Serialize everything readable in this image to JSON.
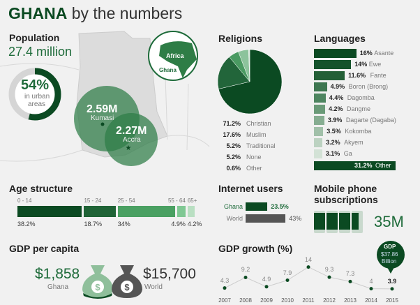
{
  "title": {
    "bold": "GHANA",
    "rest": "by the numbers"
  },
  "colors": {
    "dark_green": "#0b4a22",
    "accent_green": "#2e7d46",
    "gray": "#555555"
  },
  "population": {
    "label": "Population",
    "value": "27.4 million",
    "urban_pct": 54,
    "urban_value": "54%",
    "urban_label1": "in urban",
    "urban_label2": "areas",
    "cities": [
      {
        "value": "2.59M",
        "name": "Kumasi"
      },
      {
        "value": "2.27M",
        "name": "Accra"
      }
    ],
    "inset": {
      "continent": "Africa",
      "country": "Ghana"
    }
  },
  "chart_data": [
    {
      "type": "pie",
      "title": "Religions",
      "categories": [
        "Christian",
        "Muslim",
        "Traditional",
        "None",
        "Other"
      ],
      "values": [
        71.2,
        17.6,
        5.2,
        5.2,
        0.6
      ],
      "labels": [
        "71.2%",
        "17.6%",
        "5.2%",
        "5.2%",
        "0.6%"
      ],
      "colors": [
        "#0b4a22",
        "#22653a",
        "#4a9a62",
        "#8cc39c",
        "#d3e6d8"
      ]
    },
    {
      "type": "bar",
      "title": "Languages",
      "categories": [
        "Asante",
        "Ewe",
        "Fante",
        "Boron (Brong)",
        "Dagomba",
        "Dangme",
        "Dagarte (Dagaba)",
        "Kokomba",
        "Akyem",
        "Ga"
      ],
      "values": [
        16,
        14,
        11.6,
        4.9,
        4.4,
        4.2,
        3.9,
        3.5,
        3.2,
        3.1
      ],
      "labels": [
        "16%",
        "14%",
        "11.6%",
        "4.9%",
        "4.4%",
        "4.2%",
        "3.9%",
        "3.5%",
        "3.2%",
        "3.1%"
      ],
      "other": {
        "label": "Other",
        "value": 31.2,
        "text": "31.2%"
      },
      "colors": [
        "#0b4a22",
        "#14532b",
        "#235f36",
        "#3d7650",
        "#4d8560",
        "#6a9a78",
        "#86ad91",
        "#a1c0a9",
        "#bcd2c1",
        "#d3e2d6"
      ]
    },
    {
      "type": "bar",
      "title": "Age structure",
      "categories": [
        "0 - 14",
        "15 - 24",
        "25 - 54",
        "55 - 64",
        "65+"
      ],
      "values": [
        38.2,
        18.7,
        34,
        4.9,
        4.2
      ],
      "labels": [
        "38.2%",
        "18.7%",
        "34%",
        "4.9%",
        "4.2%"
      ],
      "colors": [
        "#0b4a22",
        "#1f6336",
        "#4aa062",
        "#7fc893",
        "#b9dfc2"
      ]
    },
    {
      "type": "bar",
      "title": "Internet users",
      "categories": [
        "Ghana",
        "World"
      ],
      "values": [
        23.5,
        43
      ],
      "labels": [
        "23.5%",
        "43%"
      ],
      "colors": [
        "#0b4a22",
        "#555555"
      ]
    },
    {
      "type": "line",
      "title": "GDP growth (%)",
      "x": [
        "2007",
        "2008",
        "2009",
        "2010",
        "2011",
        "2012",
        "2013",
        "2014",
        "2015"
      ],
      "values": [
        4.3,
        9.2,
        4.9,
        7.9,
        14,
        9.3,
        7.3,
        4,
        3.9
      ],
      "labels": [
        "4.3",
        "9.2",
        "4.9",
        "7.9",
        "14",
        "9.3",
        "7.3",
        "4",
        "3.9"
      ],
      "callout": {
        "line1": "GDP",
        "line2": "$37.86",
        "line3": "Billion"
      }
    }
  ],
  "mobile": {
    "title1": "Mobile phone",
    "title2": "subscriptions",
    "value": "35M",
    "fill_phones": 3.6
  },
  "gdp_per_capita": {
    "title": "GDP per capita",
    "ghana_value": "$1,858",
    "ghana_label": "Ghana",
    "world_value": "$15,700",
    "world_label": "World"
  }
}
